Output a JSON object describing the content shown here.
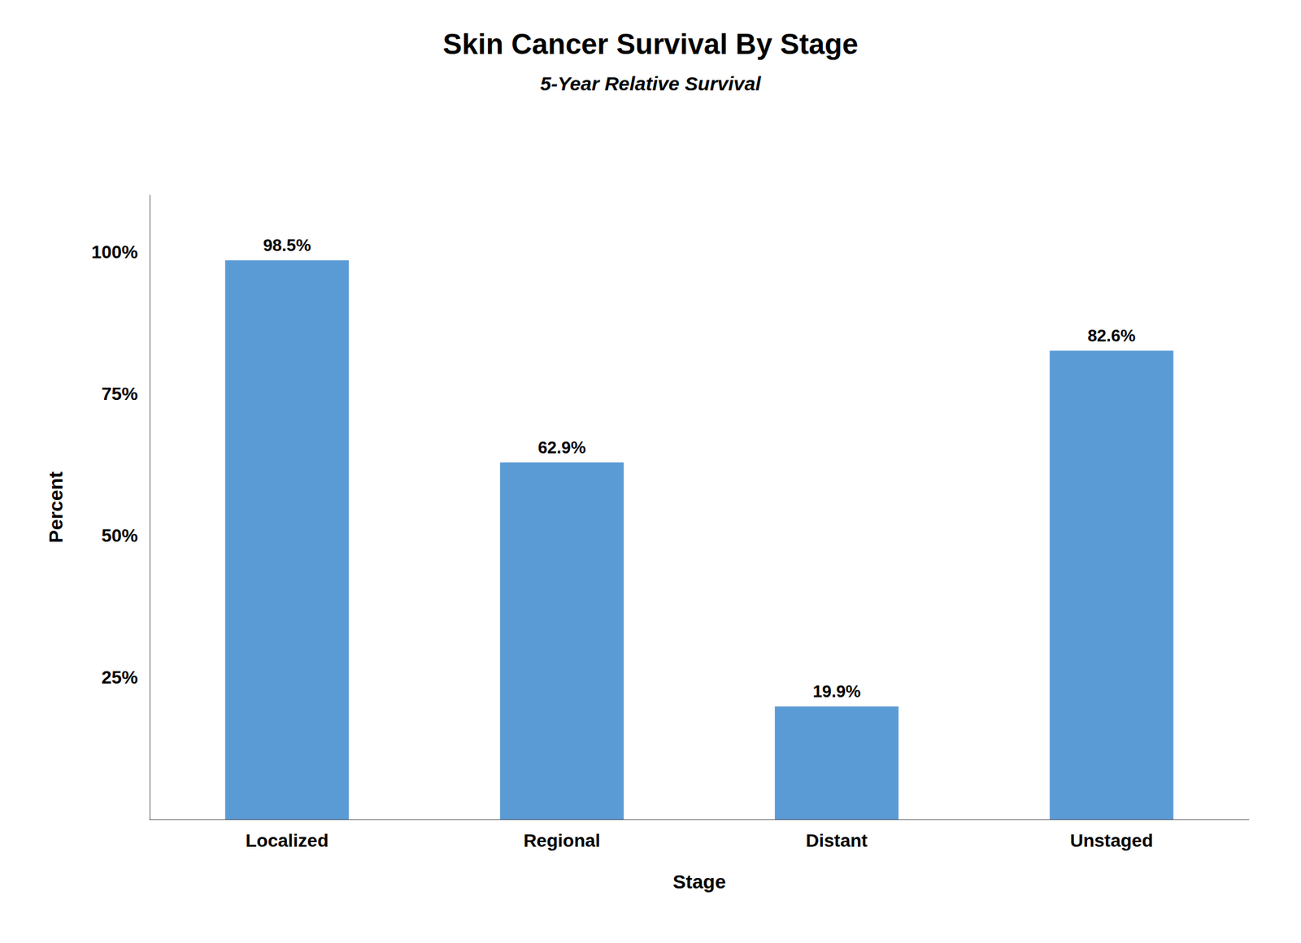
{
  "chart_data": {
    "type": "bar",
    "title": "Skin Cancer Survival By Stage",
    "subtitle": "5-Year Relative Survival",
    "categories": [
      "Localized",
      "Regional",
      "Distant",
      "Unstaged"
    ],
    "values": [
      98.5,
      62.9,
      19.9,
      82.6
    ],
    "value_labels": [
      "98.5%",
      "62.9%",
      "19.9%",
      "82.6%"
    ],
    "data_labels": true,
    "color": "#5B9BD5",
    "xlabel": "Stage",
    "ylabel": "Percent",
    "ylim": [
      0,
      110
    ],
    "yticks": [
      {
        "value": 25,
        "label": "25%"
      },
      {
        "value": 50,
        "label": "50%"
      },
      {
        "value": 75,
        "label": "75%"
      },
      {
        "value": 100,
        "label": "100%"
      }
    ],
    "grid": false
  }
}
